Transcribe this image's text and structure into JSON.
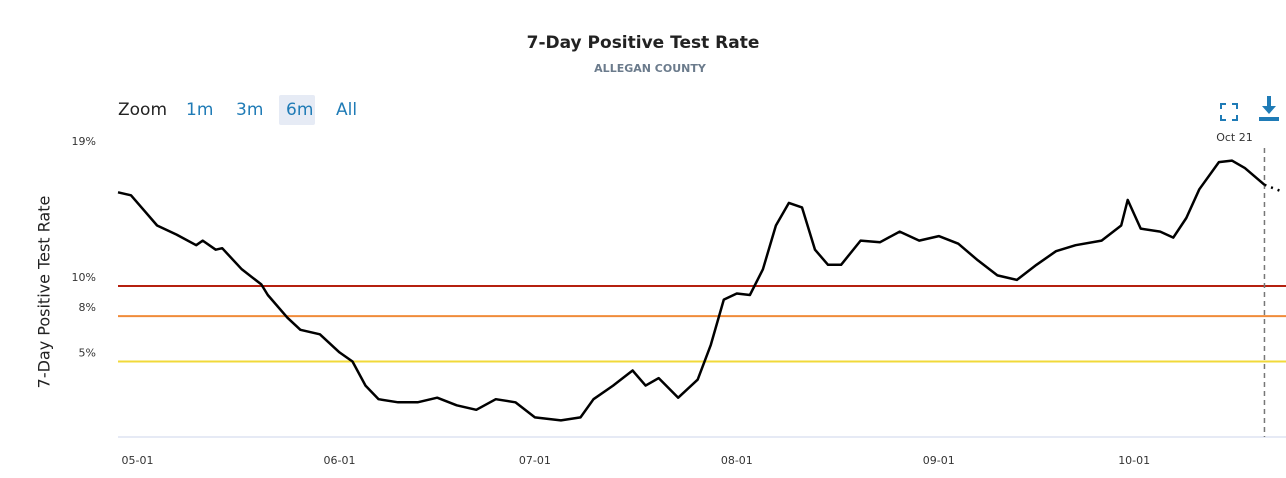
{
  "zoom": {
    "label": "Zoom",
    "buttons": [
      "1m",
      "3m",
      "6m",
      "All"
    ],
    "selected": "6m"
  },
  "chart_data": {
    "type": "line",
    "title": "7-Day Positive Test Rate",
    "subtitle": "ALLEGAN COUNTY",
    "y_axis_label": "7-Day Positive Test Rate",
    "x": [
      "04-28",
      "04-30",
      "05-02",
      "05-04",
      "05-07",
      "05-10",
      "05-11",
      "05-13",
      "05-14",
      "05-17",
      "05-20",
      "05-21",
      "05-24",
      "05-26",
      "05-29",
      "06-01",
      "06-03",
      "06-05",
      "06-07",
      "06-10",
      "06-13",
      "06-16",
      "06-19",
      "06-22",
      "06-25",
      "06-28",
      "07-01",
      "07-05",
      "07-08",
      "07-10",
      "07-13",
      "07-16",
      "07-18",
      "07-20",
      "07-23",
      "07-26",
      "07-28",
      "07-30",
      "08-01",
      "08-03",
      "08-05",
      "08-07",
      "08-09",
      "08-11",
      "08-13",
      "08-15",
      "08-17",
      "08-20",
      "08-23",
      "08-26",
      "08-29",
      "09-01",
      "09-04",
      "09-07",
      "09-10",
      "09-13",
      "09-16",
      "09-19",
      "09-22",
      "09-26",
      "09-29",
      "09-30",
      "10-02",
      "10-05",
      "10-07",
      "10-09",
      "10-11",
      "10-14",
      "10-16",
      "10-18",
      "10-21",
      "10-24"
    ],
    "series": [
      {
        "name": "7-Day Positive Test Rate",
        "color": "#000000",
        "values": [
          16.2,
          16.0,
          15.0,
          14.0,
          13.4,
          12.7,
          13.0,
          12.4,
          12.5,
          11.1,
          10.1,
          9.4,
          7.9,
          7.1,
          6.8,
          5.6,
          5.0,
          3.4,
          2.5,
          2.3,
          2.3,
          2.6,
          2.1,
          1.8,
          2.5,
          2.3,
          1.3,
          1.1,
          1.3,
          2.5,
          3.4,
          4.4,
          3.4,
          3.9,
          2.6,
          3.8,
          6.1,
          9.1,
          9.5,
          9.4,
          11.1,
          14.0,
          15.5,
          15.2,
          12.4,
          11.4,
          11.4,
          13.0,
          12.9,
          13.6,
          13.0,
          13.3,
          12.8,
          11.7,
          10.7,
          10.4,
          11.4,
          12.3,
          12.7,
          13.0,
          14.0,
          15.7,
          13.8,
          13.6,
          13.2,
          14.5,
          16.4,
          18.2,
          18.3,
          17.8,
          16.7,
          16.2
        ]
      }
    ],
    "xlim": [
      "04-28",
      "10-24"
    ],
    "xticks": [
      "05-01",
      "06-01",
      "07-01",
      "08-01",
      "09-01",
      "10-01"
    ],
    "ylim": [
      0,
      19.2
    ],
    "yticks": [
      {
        "value": 5,
        "label": "5%"
      },
      {
        "value": 8,
        "label": "8%"
      },
      {
        "value": 10,
        "label": "10%"
      },
      {
        "value": 19,
        "label": "19%"
      }
    ],
    "plot_lines": [
      {
        "value": 10,
        "color": "#b5200f"
      },
      {
        "value": 8,
        "color": "#f08b3a"
      },
      {
        "value": 5,
        "color": "#f1d93a"
      }
    ],
    "annotation": {
      "x": "10-21",
      "label": "Oct 21"
    }
  }
}
